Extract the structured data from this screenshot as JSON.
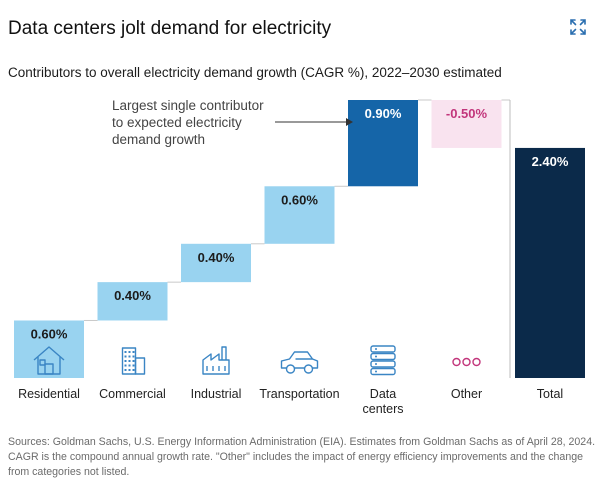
{
  "header": {
    "title": "Data centers jolt demand for electricity",
    "expand_icon": "expand-icon"
  },
  "subtitle": "Contributors to overall electricity demand growth (CAGR %), 2022–2030 estimated",
  "annotation": {
    "lines": [
      "Largest single contributor",
      "to expected electricity",
      "demand growth"
    ]
  },
  "colors": {
    "light_blue": "#99d3f0",
    "dark_blue": "#1565a8",
    "navy": "#0b2a4a",
    "pink": "#f9e3ef",
    "pink_text": "#c2357b",
    "icon": "#3a85c4"
  },
  "chart_data": {
    "type": "bar",
    "subtype": "waterfall",
    "title": "Contributors to overall electricity demand growth (CAGR %), 2022–2030 estimated",
    "unit": "%",
    "categories": [
      "Residential",
      "Commercial",
      "Industrial",
      "Transportation",
      "Data centers",
      "Other",
      "Total"
    ],
    "category_lines": [
      [
        "Residential"
      ],
      [
        "Commercial"
      ],
      [
        "Industrial"
      ],
      [
        "Transportation"
      ],
      [
        "Data",
        "centers"
      ],
      [
        "Other"
      ],
      [
        "Total"
      ]
    ],
    "values": [
      0.6,
      0.4,
      0.4,
      0.6,
      0.9,
      -0.5,
      2.4
    ],
    "value_labels": [
      "0.60%",
      "0.40%",
      "0.40%",
      "0.60%",
      "0.90%",
      "-0.50%",
      "2.40%"
    ],
    "is_total": [
      false,
      false,
      false,
      false,
      false,
      false,
      true
    ],
    "icons": [
      "house-icon",
      "office-building-icon",
      "factory-icon",
      "car-icon",
      "server-icon",
      "dots-icon",
      ""
    ],
    "ylim": [
      0,
      2.9
    ],
    "grid": false,
    "legend": "none"
  },
  "source_note": "Sources: Goldman Sachs, U.S. Energy Information Administration (EIA). Estimates from Goldman Sachs as of April 28, 2024. CAGR is the compound annual growth rate. \"Other\" includes the impact of energy efficiency improvements and the change from categories not listed."
}
